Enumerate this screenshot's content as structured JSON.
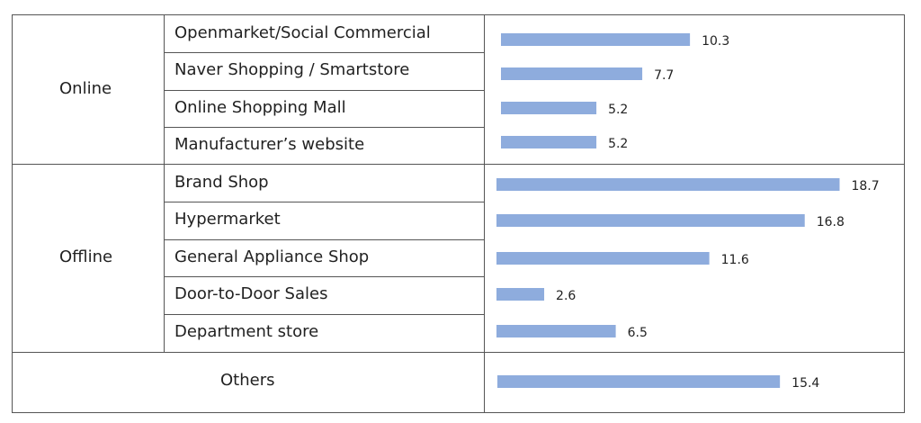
{
  "chart_data": {
    "type": "bar",
    "orientation": "horizontal",
    "groups": [
      {
        "name": "Online",
        "categories": [
          "Openmarket/Social Commercial",
          "Naver Shopping / Smartstore",
          "Online Shopping Mall",
          "Manufacturer’s website"
        ],
        "values": [
          10.3,
          7.7,
          5.2,
          5.2
        ]
      },
      {
        "name": "Offline",
        "categories": [
          "Brand Shop",
          "Hypermarket",
          "General Appliance Shop",
          "Door-to-Door Sales",
          "Department store"
        ],
        "values": [
          18.7,
          16.8,
          11.6,
          2.6,
          6.5
        ]
      },
      {
        "name": "Others",
        "categories": [],
        "values": [
          15.4
        ]
      }
    ],
    "bar_color": "#8eacdd",
    "grid": false
  }
}
